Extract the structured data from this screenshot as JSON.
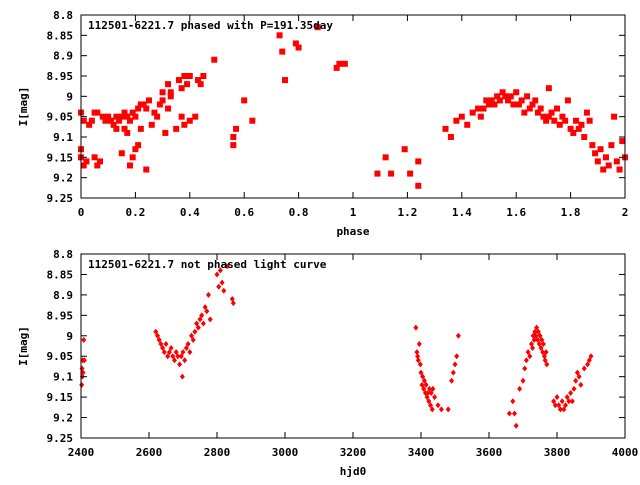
{
  "chart_data": [
    {
      "type": "scatter",
      "title": "112501-6221.7 phased with P=191.35day",
      "xlabel": "phase",
      "ylabel": "I[mag]",
      "xlim": [
        0,
        2
      ],
      "ylim": [
        9.25,
        8.8
      ],
      "y_inverted": true,
      "x_ticks": [
        0,
        0.2,
        0.4,
        0.6,
        0.8,
        1,
        1.2,
        1.4,
        1.6,
        1.8,
        2
      ],
      "x_tick_labels": [
        "0",
        "0.2",
        "0.4",
        "0.6",
        "0.8",
        "1",
        "1.2",
        "1.4",
        "1.6",
        "1.8",
        "2"
      ],
      "y_ticks": [
        8.8,
        8.85,
        8.9,
        8.95,
        9,
        9.05,
        9.1,
        9.15,
        9.2,
        9.25
      ],
      "y_tick_labels": [
        "8.8",
        "8.85",
        "8.9",
        "8.95",
        "9",
        "9.05",
        "9.1",
        "9.15",
        "9.2",
        "9.25"
      ],
      "marker": "filled-square",
      "color": "#ff0000",
      "grid": false,
      "points": [
        [
          0.0,
          9.04
        ],
        [
          0.0,
          9.13
        ],
        [
          0.0,
          9.15
        ],
        [
          0.01,
          9.17
        ],
        [
          0.01,
          9.06
        ],
        [
          0.02,
          9.16
        ],
        [
          0.03,
          9.07
        ],
        [
          0.04,
          9.06
        ],
        [
          0.05,
          9.04
        ],
        [
          0.05,
          9.15
        ],
        [
          0.06,
          9.17
        ],
        [
          0.06,
          9.04
        ],
        [
          0.07,
          9.16
        ],
        [
          0.08,
          9.05
        ],
        [
          0.09,
          9.06
        ],
        [
          0.1,
          9.05
        ],
        [
          0.11,
          9.06
        ],
        [
          0.12,
          9.07
        ],
        [
          0.13,
          9.08
        ],
        [
          0.13,
          9.05
        ],
        [
          0.14,
          9.06
        ],
        [
          0.15,
          9.05
        ],
        [
          0.15,
          9.14
        ],
        [
          0.16,
          9.08
        ],
        [
          0.16,
          9.04
        ],
        [
          0.17,
          9.09
        ],
        [
          0.17,
          9.05
        ],
        [
          0.18,
          9.17
        ],
        [
          0.18,
          9.06
        ],
        [
          0.19,
          9.04
        ],
        [
          0.19,
          9.15
        ],
        [
          0.2,
          9.13
        ],
        [
          0.2,
          9.05
        ],
        [
          0.21,
          9.12
        ],
        [
          0.21,
          9.03
        ],
        [
          0.22,
          9.08
        ],
        [
          0.22,
          9.02
        ],
        [
          0.23,
          9.02
        ],
        [
          0.24,
          9.03
        ],
        [
          0.24,
          9.18
        ],
        [
          0.25,
          9.01
        ],
        [
          0.26,
          9.07
        ],
        [
          0.27,
          9.04
        ],
        [
          0.28,
          9.05
        ],
        [
          0.29,
          9.02
        ],
        [
          0.3,
          9.01
        ],
        [
          0.3,
          8.99
        ],
        [
          0.31,
          9.09
        ],
        [
          0.32,
          9.03
        ],
        [
          0.32,
          8.97
        ],
        [
          0.33,
          9.0
        ],
        [
          0.33,
          8.99
        ],
        [
          0.35,
          9.08
        ],
        [
          0.36,
          8.96
        ],
        [
          0.37,
          9.05
        ],
        [
          0.37,
          8.98
        ],
        [
          0.38,
          8.95
        ],
        [
          0.38,
          9.07
        ],
        [
          0.39,
          8.97
        ],
        [
          0.4,
          9.06
        ],
        [
          0.4,
          8.95
        ],
        [
          0.42,
          9.05
        ],
        [
          0.43,
          8.96
        ],
        [
          0.44,
          8.97
        ],
        [
          0.45,
          8.95
        ],
        [
          0.49,
          8.91
        ],
        [
          0.56,
          9.1
        ],
        [
          0.56,
          9.12
        ],
        [
          0.57,
          9.08
        ],
        [
          0.6,
          9.01
        ],
        [
          0.63,
          9.06
        ],
        [
          0.73,
          8.85
        ],
        [
          0.74,
          8.89
        ],
        [
          0.75,
          8.96
        ],
        [
          0.79,
          8.87
        ],
        [
          0.8,
          8.88
        ],
        [
          0.87,
          8.83
        ],
        [
          0.94,
          8.93
        ],
        [
          0.95,
          8.92
        ],
        [
          0.97,
          8.92
        ],
        [
          1.09,
          9.19
        ],
        [
          1.12,
          9.15
        ],
        [
          1.14,
          9.19
        ],
        [
          1.19,
          9.13
        ],
        [
          1.21,
          9.19
        ],
        [
          1.24,
          9.16
        ],
        [
          1.24,
          9.22
        ],
        [
          1.34,
          9.08
        ],
        [
          1.36,
          9.1
        ],
        [
          1.38,
          9.06
        ],
        [
          1.4,
          9.05
        ],
        [
          1.42,
          9.07
        ],
        [
          1.44,
          9.04
        ],
        [
          1.46,
          9.03
        ],
        [
          1.47,
          9.05
        ],
        [
          1.48,
          9.03
        ],
        [
          1.49,
          9.01
        ],
        [
          1.5,
          9.02
        ],
        [
          1.51,
          9.01
        ],
        [
          1.52,
          9.02
        ],
        [
          1.53,
          9.0
        ],
        [
          1.54,
          9.01
        ],
        [
          1.55,
          8.99
        ],
        [
          1.56,
          9.0
        ],
        [
          1.57,
          9.01
        ],
        [
          1.58,
          9.0
        ],
        [
          1.59,
          9.02
        ],
        [
          1.6,
          8.99
        ],
        [
          1.61,
          9.02
        ],
        [
          1.62,
          9.01
        ],
        [
          1.63,
          9.04
        ],
        [
          1.64,
          9.0
        ],
        [
          1.65,
          9.03
        ],
        [
          1.66,
          9.02
        ],
        [
          1.67,
          9.01
        ],
        [
          1.68,
          9.04
        ],
        [
          1.69,
          9.03
        ],
        [
          1.7,
          9.05
        ],
        [
          1.71,
          9.06
        ],
        [
          1.72,
          8.98
        ],
        [
          1.72,
          9.05
        ],
        [
          1.73,
          9.04
        ],
        [
          1.74,
          9.06
        ],
        [
          1.75,
          9.03
        ],
        [
          1.76,
          9.07
        ],
        [
          1.77,
          9.05
        ],
        [
          1.78,
          9.06
        ],
        [
          1.79,
          9.01
        ],
        [
          1.8,
          9.08
        ],
        [
          1.81,
          9.09
        ],
        [
          1.82,
          9.06
        ],
        [
          1.83,
          9.08
        ],
        [
          1.84,
          9.07
        ],
        [
          1.85,
          9.1
        ],
        [
          1.86,
          9.04
        ],
        [
          1.87,
          9.06
        ],
        [
          1.88,
          9.12
        ],
        [
          1.89,
          9.14
        ],
        [
          1.9,
          9.16
        ],
        [
          1.91,
          9.13
        ],
        [
          1.92,
          9.18
        ],
        [
          1.93,
          9.15
        ],
        [
          1.94,
          9.17
        ],
        [
          1.95,
          9.12
        ],
        [
          1.96,
          9.05
        ],
        [
          1.97,
          9.16
        ],
        [
          1.98,
          9.18
        ],
        [
          1.99,
          9.11
        ],
        [
          2.0,
          9.15
        ]
      ]
    },
    {
      "type": "scatter",
      "title": "112501-6221.7 not phased light curve",
      "xlabel": "hjd0",
      "ylabel": "I[mag]",
      "xlim": [
        2400,
        4000
      ],
      "ylim": [
        9.25,
        8.8
      ],
      "y_inverted": true,
      "x_ticks": [
        2400,
        2600,
        2800,
        3000,
        3200,
        3400,
        3600,
        3800,
        4000
      ],
      "x_tick_labels": [
        "2400",
        "2600",
        "2800",
        "3000",
        "3200",
        "3400",
        "3600",
        "3800",
        "4000"
      ],
      "y_ticks": [
        8.8,
        8.85,
        8.9,
        8.95,
        9,
        9.05,
        9.1,
        9.15,
        9.2,
        9.25
      ],
      "y_tick_labels": [
        "8.8",
        "8.85",
        "8.9",
        "8.95",
        "9",
        "9.05",
        "9.1",
        "9.15",
        "9.2",
        "9.25"
      ],
      "marker": "diamond",
      "color": "#ff0000",
      "grid": false,
      "points": [
        [
          2402,
          9.12
        ],
        [
          2403,
          9.08
        ],
        [
          2404,
          9.1
        ],
        [
          2405,
          9.06
        ],
        [
          2406,
          9.09
        ],
        [
          2408,
          9.01
        ],
        [
          2410,
          9.06
        ],
        [
          2620,
          8.99
        ],
        [
          2625,
          9.0
        ],
        [
          2630,
          9.01
        ],
        [
          2635,
          9.02
        ],
        [
          2640,
          9.03
        ],
        [
          2645,
          9.04
        ],
        [
          2650,
          9.02
        ],
        [
          2655,
          9.05
        ],
        [
          2660,
          9.04
        ],
        [
          2665,
          9.03
        ],
        [
          2670,
          9.05
        ],
        [
          2675,
          9.06
        ],
        [
          2680,
          9.04
        ],
        [
          2685,
          9.05
        ],
        [
          2690,
          9.07
        ],
        [
          2695,
          9.05
        ],
        [
          2698,
          9.1
        ],
        [
          2700,
          9.04
        ],
        [
          2705,
          9.06
        ],
        [
          2710,
          9.03
        ],
        [
          2715,
          9.02
        ],
        [
          2720,
          9.04
        ],
        [
          2725,
          9.0
        ],
        [
          2730,
          9.01
        ],
        [
          2735,
          8.99
        ],
        [
          2740,
          8.97
        ],
        [
          2745,
          8.98
        ],
        [
          2750,
          8.96
        ],
        [
          2755,
          8.95
        ],
        [
          2760,
          8.97
        ],
        [
          2765,
          8.93
        ],
        [
          2770,
          8.94
        ],
        [
          2775,
          8.9
        ],
        [
          2780,
          8.96
        ],
        [
          2800,
          8.85
        ],
        [
          2805,
          8.88
        ],
        [
          2810,
          8.84
        ],
        [
          2815,
          8.87
        ],
        [
          2820,
          8.89
        ],
        [
          2830,
          8.83
        ],
        [
          2845,
          8.91
        ],
        [
          2848,
          8.92
        ],
        [
          3385,
          8.98
        ],
        [
          3388,
          9.04
        ],
        [
          3390,
          9.05
        ],
        [
          3392,
          9.06
        ],
        [
          3395,
          9.02
        ],
        [
          3398,
          9.07
        ],
        [
          3400,
          9.09
        ],
        [
          3403,
          9.12
        ],
        [
          3405,
          9.1
        ],
        [
          3408,
          9.13
        ],
        [
          3410,
          9.11
        ],
        [
          3413,
          9.14
        ],
        [
          3415,
          9.12
        ],
        [
          3418,
          9.15
        ],
        [
          3420,
          9.14
        ],
        [
          3423,
          9.16
        ],
        [
          3425,
          9.13
        ],
        [
          3428,
          9.17
        ],
        [
          3430,
          9.14
        ],
        [
          3433,
          9.18
        ],
        [
          3435,
          9.13
        ],
        [
          3440,
          9.15
        ],
        [
          3450,
          9.17
        ],
        [
          3460,
          9.18
        ],
        [
          3480,
          9.18
        ],
        [
          3490,
          9.11
        ],
        [
          3495,
          9.09
        ],
        [
          3500,
          9.07
        ],
        [
          3505,
          9.05
        ],
        [
          3510,
          9.0
        ],
        [
          3660,
          9.19
        ],
        [
          3670,
          9.16
        ],
        [
          3675,
          9.19
        ],
        [
          3680,
          9.22
        ],
        [
          3690,
          9.13
        ],
        [
          3700,
          9.11
        ],
        [
          3705,
          9.08
        ],
        [
          3710,
          9.06
        ],
        [
          3715,
          9.04
        ],
        [
          3720,
          9.05
        ],
        [
          3725,
          9.02
        ],
        [
          3728,
          9.03
        ],
        [
          3730,
          9.0
        ],
        [
          3733,
          9.01
        ],
        [
          3735,
          8.99
        ],
        [
          3738,
          9.0
        ],
        [
          3740,
          8.98
        ],
        [
          3743,
          9.01
        ],
        [
          3745,
          8.99
        ],
        [
          3748,
          9.02
        ],
        [
          3750,
          9.0
        ],
        [
          3753,
          9.03
        ],
        [
          3755,
          9.01
        ],
        [
          3758,
          9.04
        ],
        [
          3760,
          9.02
        ],
        [
          3763,
          9.05
        ],
        [
          3765,
          9.06
        ],
        [
          3768,
          9.04
        ],
        [
          3770,
          9.07
        ],
        [
          3790,
          9.16
        ],
        [
          3795,
          9.17
        ],
        [
          3800,
          9.15
        ],
        [
          3805,
          9.17
        ],
        [
          3810,
          9.18
        ],
        [
          3815,
          9.16
        ],
        [
          3820,
          9.18
        ],
        [
          3825,
          9.17
        ],
        [
          3830,
          9.15
        ],
        [
          3835,
          9.16
        ],
        [
          3840,
          9.14
        ],
        [
          3845,
          9.16
        ],
        [
          3850,
          9.13
        ],
        [
          3855,
          9.11
        ],
        [
          3860,
          9.09
        ],
        [
          3865,
          9.1
        ],
        [
          3870,
          9.12
        ],
        [
          3880,
          9.08
        ],
        [
          3890,
          9.07
        ],
        [
          3895,
          9.06
        ],
        [
          3900,
          9.05
        ]
      ]
    }
  ]
}
